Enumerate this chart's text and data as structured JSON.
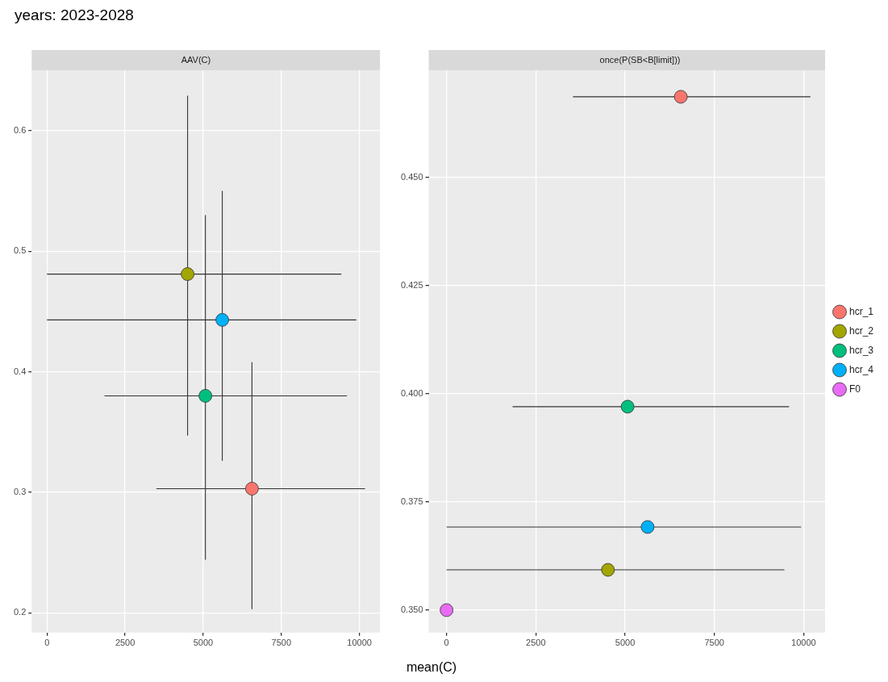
{
  "chart_data": [
    {
      "type": "scatter",
      "title": "AAV(C)",
      "xlabel": "mean(C)",
      "annotations": [
        "years: 2023-2028"
      ],
      "xlim": [
        -490,
        10660
      ],
      "ylim": [
        0.1836,
        0.65
      ],
      "xticks": [
        0,
        2500,
        5000,
        7500,
        10000
      ],
      "yticks": [
        0.2,
        0.3,
        0.4,
        0.5,
        0.6
      ],
      "grid": true,
      "legend": false,
      "marker": "circle",
      "series": [
        {
          "color": "#f8766d",
          "x": [
            6560
          ],
          "values": [
            0.303
          ],
          "xerrors": [
            [
              3500,
              10180
            ]
          ],
          "errors": [
            [
              0.203,
              0.408
            ]
          ]
        },
        {
          "color": "#a3a500",
          "x": [
            4500
          ],
          "values": [
            0.481
          ],
          "xerrors": [
            [
              0,
              9420
            ]
          ],
          "errors": [
            [
              0.347,
              0.629
            ]
          ]
        },
        {
          "color": "#00bf7d",
          "x": [
            5070
          ],
          "values": [
            0.38
          ],
          "xerrors": [
            [
              1840,
              9600
            ]
          ],
          "errors": [
            [
              0.244,
              0.53
            ]
          ]
        },
        {
          "color": "#00b0f6",
          "x": [
            5610
          ],
          "values": [
            0.443
          ],
          "xerrors": [
            [
              0,
              9900
            ]
          ],
          "errors": [
            [
              0.326,
              0.55
            ]
          ]
        }
      ]
    },
    {
      "type": "scatter",
      "title": "once(P(SB<B[limit]))",
      "xlim": [
        -500,
        10600
      ],
      "ylim": [
        0.3448,
        0.4747
      ],
      "xticks": [
        0,
        2500,
        5000,
        7500,
        10000
      ],
      "yticks": [
        {
          "value": 0.35,
          "label": "0.350"
        },
        {
          "value": 0.375,
          "label": "0.375"
        },
        {
          "value": 0.4,
          "label": "0.400"
        },
        {
          "value": 0.425,
          "label": "0.425"
        },
        {
          "value": 0.45,
          "label": "0.450"
        }
      ],
      "grid": true,
      "legend": "right",
      "marker": "circle",
      "series": [
        {
          "name": "hcr_1",
          "color": "#f8766d",
          "x": [
            6560
          ],
          "values": [
            0.4686
          ],
          "xerrors": [
            [
              3540,
              10190
            ]
          ]
        },
        {
          "name": "hcr_2",
          "color": "#a3a500",
          "x": [
            4520
          ],
          "values": [
            0.3593
          ],
          "xerrors": [
            [
              0,
              9460
            ]
          ]
        },
        {
          "name": "hcr_3",
          "color": "#00bf7d",
          "x": [
            5070
          ],
          "values": [
            0.397
          ],
          "xerrors": [
            [
              1850,
              9590
            ]
          ]
        },
        {
          "name": "hcr_4",
          "color": "#00b0f6",
          "x": [
            5630
          ],
          "values": [
            0.3692
          ],
          "xerrors": [
            [
              0,
              9930
            ]
          ]
        },
        {
          "name": "F0",
          "color": "#e76bf3",
          "x": [
            0
          ],
          "values": [
            0.35
          ]
        }
      ]
    }
  ]
}
